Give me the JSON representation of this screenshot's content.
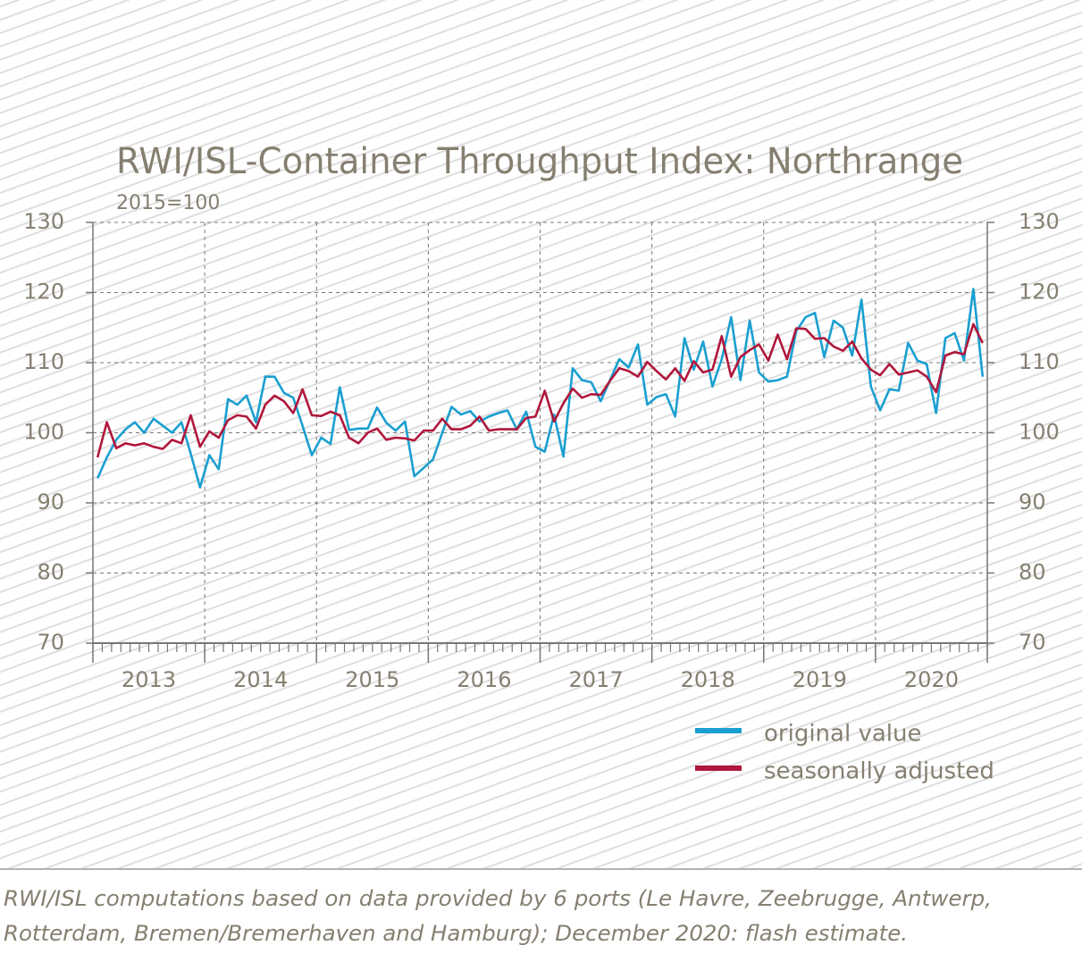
{
  "chart_data": {
    "type": "line",
    "title": "RWI/ISL-Container Throughput Index: Northrange",
    "subtitle": "2015=100",
    "categories": [
      "2013",
      null,
      null,
      null,
      null,
      null,
      null,
      null,
      null,
      null,
      null,
      null,
      "2014",
      null,
      null,
      null,
      null,
      null,
      null,
      null,
      null,
      null,
      null,
      null,
      "2015",
      null,
      null,
      null,
      null,
      null,
      null,
      null,
      null,
      null,
      null,
      null,
      "2016",
      null,
      null,
      null,
      null,
      null,
      null,
      null,
      null,
      null,
      null,
      null,
      "2017",
      null,
      null,
      null,
      null,
      null,
      null,
      null,
      null,
      null,
      null,
      null,
      "2018",
      null,
      null,
      null,
      null,
      null,
      null,
      null,
      null,
      null,
      null,
      null,
      "2019",
      null,
      null,
      null,
      null,
      null,
      null,
      null,
      null,
      null,
      null,
      null,
      "2020",
      null,
      null,
      null,
      null,
      null,
      null,
      null,
      null,
      null,
      null,
      null
    ],
    "series": [
      {
        "name": "original value",
        "color": "#1a9fd0",
        "values": [
          93.5,
          96.5,
          99,
          100.5,
          101.5,
          100,
          102,
          101,
          100,
          101.5,
          97,
          92.2,
          96.8,
          94.8,
          104.8,
          104,
          105.3,
          101.5,
          108,
          108,
          105.7,
          105,
          101,
          96.8,
          99.3,
          98.4,
          106.5,
          100.4,
          100.6,
          100.6,
          103.6,
          101.4,
          100.3,
          101.6,
          93.8,
          95,
          96.2,
          100,
          103.7,
          102.6,
          103.1,
          101.6,
          102.3,
          102.8,
          103.2,
          100.5,
          103,
          98,
          97.3,
          102.6,
          96.6,
          109.2,
          107.5,
          107.2,
          104.5,
          107.5,
          110.5,
          109.3,
          112.6,
          104,
          105.1,
          105.5,
          102.3,
          113.5,
          109,
          113,
          106.6,
          110.5,
          116.5,
          107.5,
          116,
          108.6,
          107.3,
          107.5,
          108,
          114.5,
          116.5,
          117.1,
          110.8,
          116,
          115,
          111,
          119,
          106.6,
          103.2,
          106.2,
          106,
          112.8,
          110.3,
          109.8,
          102.8,
          113.5,
          114.2,
          110.3,
          120.5,
          108
        ]
      },
      {
        "name": "seasonally adjusted",
        "color": "#b0173b",
        "values": [
          96.5,
          101.5,
          97.8,
          98.5,
          98.2,
          98.5,
          98,
          97.7,
          99,
          98.5,
          102.5,
          98,
          100.2,
          99.3,
          101.8,
          102.5,
          102.3,
          100.6,
          104,
          105.3,
          104.5,
          102.8,
          106.2,
          102.5,
          102.4,
          103,
          102.5,
          99.3,
          98.5,
          100,
          100.6,
          99,
          99.3,
          99.2,
          98.9,
          100.3,
          100.3,
          102,
          100.5,
          100.5,
          101,
          102.3,
          100.3,
          100.5,
          100.5,
          100.5,
          102.1,
          102.3,
          106,
          101.6,
          104.2,
          106.3,
          105,
          105.5,
          105.4,
          107.4,
          109.2,
          108.8,
          108,
          110.1,
          108.8,
          107.6,
          109.2,
          107.4,
          110.2,
          108.6,
          109,
          113.8,
          108,
          110.8,
          111.8,
          112.6,
          110.3,
          114,
          110.5,
          114.9,
          114.8,
          113.4,
          113.5,
          112.3,
          111.7,
          113,
          110.6,
          109,
          108.2,
          109.8,
          108.3,
          108.6,
          108.9,
          108,
          105.8,
          111,
          111.5,
          111.2,
          115.5,
          112.8
        ]
      }
    ],
    "ylim": [
      70,
      130
    ],
    "yticks": [
      70,
      80,
      90,
      100,
      110,
      120,
      130
    ],
    "grid": true,
    "legend": "bottom-right",
    "notes": [
      "RWI/ISL computations based on data provided by 6 ports (Le Havre, Zeebrugge, Antwerp,",
      "Rotterdam, Bremen/Bremerhaven and Hamburg); December 2020: flash estimate."
    ]
  }
}
